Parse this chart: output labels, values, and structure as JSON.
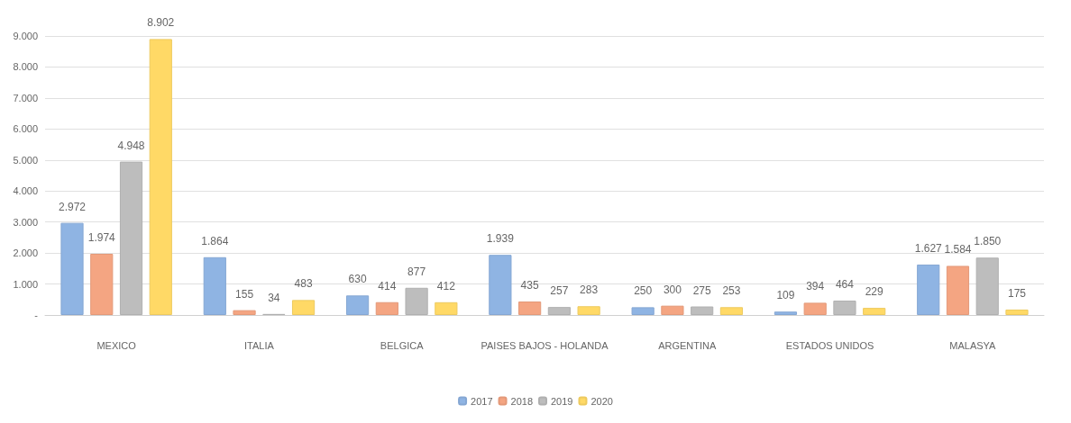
{
  "chart_data": {
    "type": "bar",
    "categories": [
      "MEXICO",
      "ITALIA",
      "BELGICA",
      "PAISES BAJOS - HOLANDA",
      "ARGENTINA",
      "ESTADOS UNIDOS",
      "MALASYA"
    ],
    "series": [
      {
        "name": "2017",
        "color": "#8fb4e3",
        "values": [
          2972,
          1864,
          630,
          1939,
          250,
          109,
          1627
        ],
        "value_labels": [
          "2.972",
          "1.864",
          "630",
          "1.939",
          "250",
          "109",
          "1.627"
        ]
      },
      {
        "name": "2018",
        "color": "#f4a582",
        "values": [
          1974,
          155,
          414,
          435,
          300,
          394,
          1584
        ],
        "value_labels": [
          "1.974",
          "155",
          "414",
          "435",
          "300",
          "394",
          "1.584"
        ]
      },
      {
        "name": "2019",
        "color": "#bdbdbd",
        "values": [
          4948,
          34,
          877,
          257,
          275,
          464,
          1850
        ],
        "value_labels": [
          "4.948",
          "34",
          "877",
          "257",
          "275",
          "464",
          "1.850"
        ]
      },
      {
        "name": "2020",
        "color": "#ffd966",
        "values": [
          8902,
          483,
          412,
          283,
          253,
          229,
          175
        ],
        "value_labels": [
          "8.902",
          "483",
          "412",
          "283",
          "253",
          "229",
          "175"
        ]
      }
    ],
    "ylim": [
      0,
      9000
    ],
    "yticks": [
      {
        "value": 0,
        "label": "-"
      },
      {
        "value": 1000,
        "label": "1.000"
      },
      {
        "value": 2000,
        "label": "2.000"
      },
      {
        "value": 3000,
        "label": "3.000"
      },
      {
        "value": 4000,
        "label": "4.000"
      },
      {
        "value": 5000,
        "label": "5.000"
      },
      {
        "value": 6000,
        "label": "6.000"
      },
      {
        "value": 7000,
        "label": "7.000"
      },
      {
        "value": 8000,
        "label": "8.000"
      },
      {
        "value": 9000,
        "label": "9.000"
      }
    ],
    "grid": "y",
    "legend": "bottom"
  }
}
